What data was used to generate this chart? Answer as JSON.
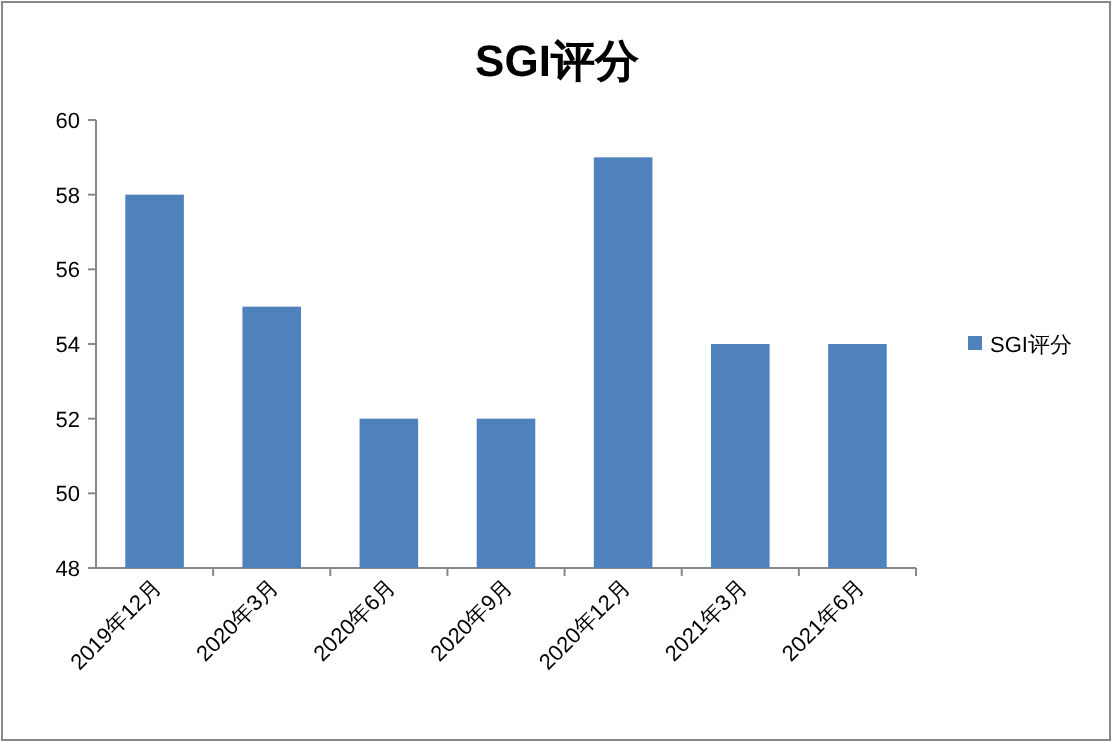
{
  "chart_data": {
    "type": "bar",
    "title": "SGI评分",
    "categories": [
      "2019年12月",
      "2020年3月",
      "2020年6月",
      "2020年9月",
      "2020年12月",
      "2021年3月",
      "2021年6月"
    ],
    "series": [
      {
        "name": "SGI评分",
        "color": "#4f81bd",
        "values": [
          58,
          55,
          52,
          52,
          59,
          54,
          54
        ]
      }
    ],
    "ylim": [
      48,
      60
    ],
    "yticks": [
      48,
      50,
      52,
      54,
      56,
      58,
      60
    ],
    "grid": false,
    "legend": "right"
  }
}
